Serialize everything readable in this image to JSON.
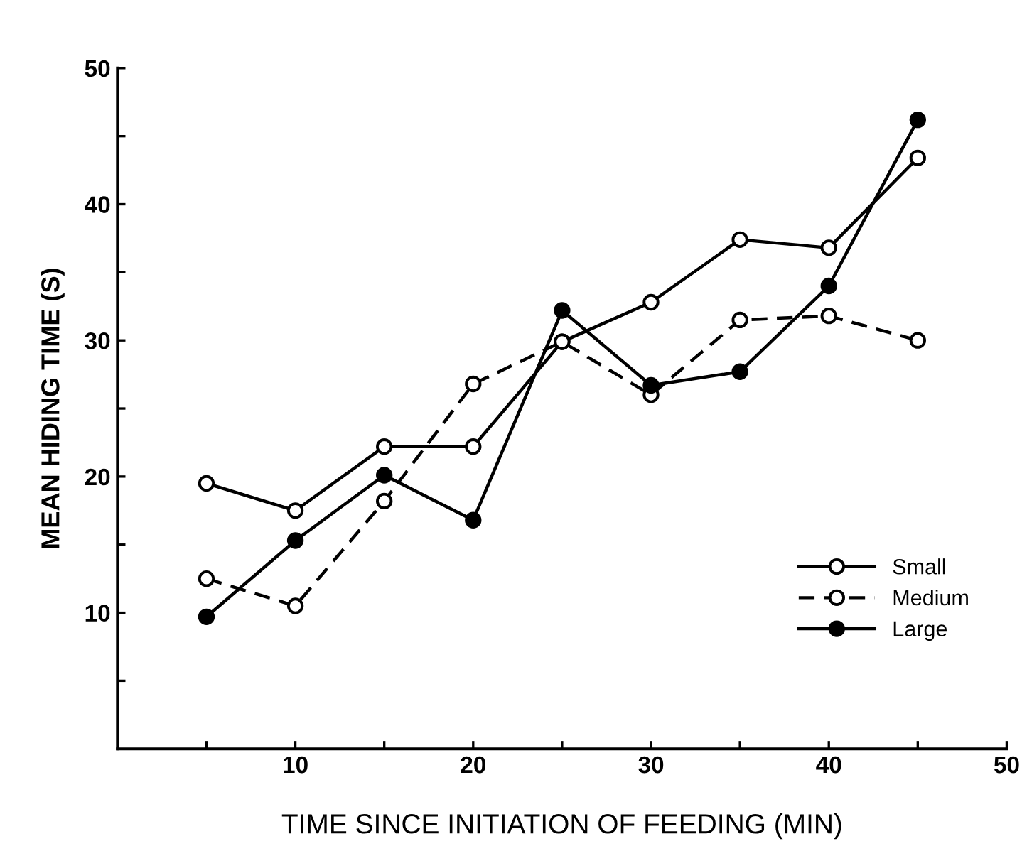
{
  "chart_data": {
    "type": "line",
    "xlabel": "TIME SINCE INITIATION OF FEEDING (MIN)",
    "ylabel": "MEAN HIDING TIME (S)",
    "x": [
      5,
      10,
      15,
      20,
      25,
      30,
      35,
      40,
      45
    ],
    "xlim": [
      0,
      50
    ],
    "xticks": [
      {
        "value": 5,
        "label": null
      },
      10,
      {
        "value": 15,
        "label": null
      },
      20,
      {
        "value": 25,
        "label": null
      },
      30,
      {
        "value": 35,
        "label": null
      },
      40,
      {
        "value": 45,
        "label": null
      },
      50
    ],
    "ylim": [
      0,
      50
    ],
    "yticks": [
      {
        "value": 5,
        "label": null
      },
      10,
      {
        "value": 15,
        "label": null
      },
      20,
      {
        "value": 25,
        "label": null
      },
      30,
      {
        "value": 35,
        "label": null
      },
      40,
      {
        "value": 45,
        "label": null
      },
      50
    ],
    "series": [
      {
        "name": "Small",
        "color": "#000000",
        "line_style": "solid",
        "marker": "circle",
        "colors": [
          "#ffffff",
          "#ffffff",
          "#ffffff",
          "#ffffff",
          "#ffffff",
          "#ffffff",
          "#ffffff",
          "#ffffff",
          "#ffffff"
        ],
        "values": [
          19.5,
          17.5,
          22.2,
          22.2,
          29.9,
          32.8,
          37.4,
          36.8,
          43.4
        ]
      },
      {
        "name": "Medium",
        "color": "#000000",
        "line_style": "dashed",
        "marker": "circle",
        "colors": [
          "#ffffff",
          "#ffffff",
          "#ffffff",
          "#ffffff",
          "#ffffff",
          "#ffffff",
          "#ffffff",
          "#ffffff",
          "#ffffff"
        ],
        "values": [
          12.5,
          10.5,
          18.2,
          26.8,
          29.9,
          26.0,
          31.5,
          31.8,
          30.0
        ]
      },
      {
        "name": "Large",
        "color": "#000000",
        "line_style": "solid",
        "marker": "circle",
        "colors": [
          "#000000",
          "#000000",
          "#000000",
          "#000000",
          "#000000",
          "#000000",
          "#000000",
          "#000000",
          "#000000"
        ],
        "values": [
          9.7,
          15.3,
          20.1,
          16.8,
          32.2,
          26.7,
          27.7,
          34.0,
          46.2
        ]
      }
    ],
    "legend": "lower right",
    "grid": false
  }
}
